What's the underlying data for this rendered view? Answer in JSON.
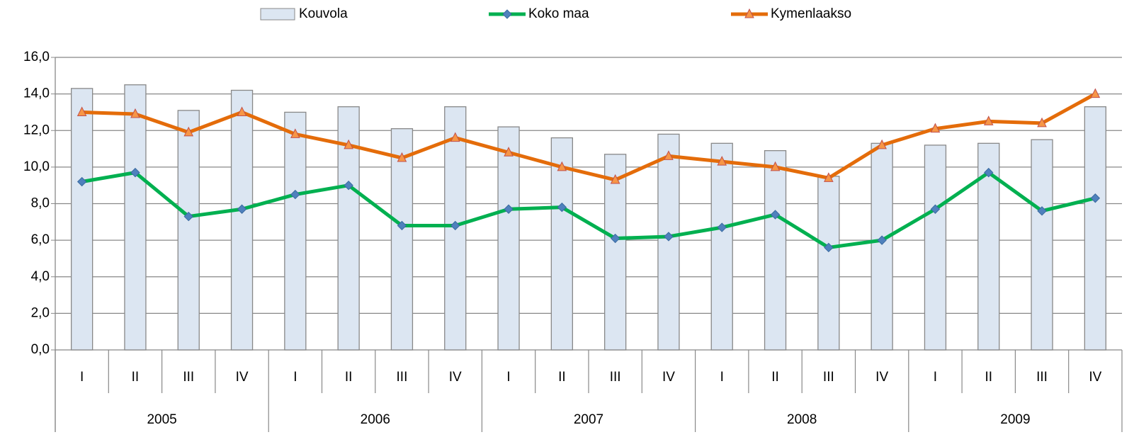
{
  "chart_data": {
    "type": "bar",
    "categories": [
      "I",
      "II",
      "III",
      "IV",
      "I",
      "II",
      "III",
      "IV",
      "I",
      "II",
      "III",
      "IV",
      "I",
      "II",
      "III",
      "IV",
      "I",
      "II",
      "III",
      "IV"
    ],
    "groups": [
      "2005",
      "2006",
      "2007",
      "2008",
      "2009"
    ],
    "series": [
      {
        "name": "Kouvola",
        "type": "bar",
        "color": "#dce6f2",
        "values": [
          14.3,
          14.5,
          13.1,
          14.2,
          13.0,
          13.3,
          12.1,
          13.3,
          12.2,
          11.6,
          10.7,
          11.8,
          11.3,
          10.9,
          9.5,
          11.3,
          11.2,
          11.3,
          11.5,
          13.3
        ]
      },
      {
        "name": "Koko maa",
        "type": "line",
        "color": "#00b050",
        "marker_color": "#4f81bd",
        "marker": "diamond",
        "values": [
          9.2,
          9.7,
          7.3,
          7.7,
          8.5,
          9.0,
          6.8,
          6.8,
          7.7,
          7.8,
          6.1,
          6.2,
          6.7,
          7.4,
          5.6,
          6.0,
          7.7,
          9.7,
          7.6,
          8.3
        ]
      },
      {
        "name": "Kymenlaakso",
        "type": "line",
        "color": "#e46c0a",
        "marker_color": "#f79646",
        "marker": "triangle",
        "values": [
          13.0,
          12.9,
          11.9,
          13.0,
          11.8,
          11.2,
          10.5,
          11.6,
          10.8,
          10.0,
          9.3,
          10.6,
          10.3,
          10.0,
          9.4,
          11.2,
          12.1,
          12.5,
          12.4,
          14.0
        ]
      }
    ],
    "ylim": [
      0,
      16
    ],
    "yticks": [
      {
        "value": 0,
        "label": "0,0"
      },
      {
        "value": 2,
        "label": "2,0"
      },
      {
        "value": 4,
        "label": "4,0"
      },
      {
        "value": 6,
        "label": "6,0"
      },
      {
        "value": 8,
        "label": "8,0"
      },
      {
        "value": 10,
        "label": "10,0"
      },
      {
        "value": 12,
        "label": "12,0"
      },
      {
        "value": 14,
        "label": "14,0"
      },
      {
        "value": 16,
        "label": "16,0"
      }
    ],
    "grid": true,
    "legend": "top"
  }
}
